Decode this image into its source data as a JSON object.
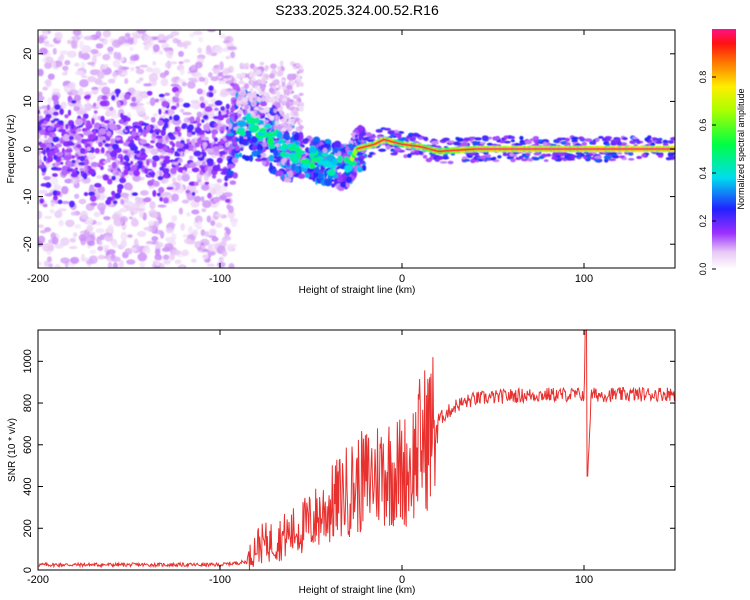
{
  "chart_data": [
    {
      "type": "heatmap",
      "title": "S233.2025.324.00.52.R16",
      "xlabel": "Height of straight line (km)",
      "ylabel": "Frequency (Hz)",
      "xlim": [
        -200,
        150
      ],
      "ylim": [
        -25,
        25
      ],
      "x_ticks": [
        "-200",
        "-100",
        "0",
        "100"
      ],
      "y_ticks": [
        "-20",
        "-10",
        "0",
        "10",
        "20"
      ],
      "colorbar": {
        "label": "Normalized spectral amplitude",
        "range": [
          0,
          1
        ],
        "ticks": [
          "0.0",
          "0.2",
          "0.4",
          "0.6",
          "0.8"
        ]
      },
      "centerline": [
        {
          "x": -200,
          "y": 0
        },
        {
          "x": -95,
          "y": 1
        },
        {
          "x": -90,
          "y": 5
        },
        {
          "x": -80,
          "y": 5
        },
        {
          "x": -70,
          "y": 2
        },
        {
          "x": -60,
          "y": -1
        },
        {
          "x": -50,
          "y": -2
        },
        {
          "x": -40,
          "y": -3
        },
        {
          "x": -30,
          "y": -4
        },
        {
          "x": -25,
          "y": 0
        },
        {
          "x": -15,
          "y": 1
        },
        {
          "x": -10,
          "y": 2
        },
        {
          "x": 0,
          "y": 1
        },
        {
          "x": 10,
          "y": 0.5
        },
        {
          "x": 20,
          "y": -0.5
        },
        {
          "x": 40,
          "y": 0
        },
        {
          "x": 100,
          "y": 0
        },
        {
          "x": 150,
          "y": 0
        }
      ]
    },
    {
      "type": "line",
      "xlabel": "Height of straight line (km)",
      "ylabel": "SNR (10 * v/v)",
      "xlim": [
        -200,
        150
      ],
      "ylim": [
        0,
        1150
      ],
      "x_ticks": [
        "-200",
        "-100",
        "0",
        "100"
      ],
      "y_ticks": [
        "0",
        "200",
        "400",
        "600",
        "800",
        "1000"
      ],
      "color": "#e8312f",
      "series": [
        {
          "name": "SNR",
          "points": [
            {
              "x": -200,
              "y": 25
            },
            {
              "x": -150,
              "y": 25
            },
            {
              "x": -100,
              "y": 25
            },
            {
              "x": -85,
              "y": 40
            },
            {
              "x": -80,
              "y": 120
            },
            {
              "x": -70,
              "y": 140
            },
            {
              "x": -60,
              "y": 180
            },
            {
              "x": -50,
              "y": 230
            },
            {
              "x": -40,
              "y": 300
            },
            {
              "x": -30,
              "y": 380
            },
            {
              "x": -20,
              "y": 430
            },
            {
              "x": -10,
              "y": 480
            },
            {
              "x": 0,
              "y": 470
            },
            {
              "x": 5,
              "y": 500
            },
            {
              "x": 10,
              "y": 600
            },
            {
              "x": 20,
              "y": 720
            },
            {
              "x": 30,
              "y": 790
            },
            {
              "x": 40,
              "y": 820
            },
            {
              "x": 60,
              "y": 835
            },
            {
              "x": 80,
              "y": 840
            },
            {
              "x": 100,
              "y": 840
            },
            {
              "x": 101,
              "y": 1150
            },
            {
              "x": 102,
              "y": 470
            },
            {
              "x": 104,
              "y": 840
            },
            {
              "x": 120,
              "y": 840
            },
            {
              "x": 150,
              "y": 845
            }
          ]
        }
      ]
    }
  ]
}
